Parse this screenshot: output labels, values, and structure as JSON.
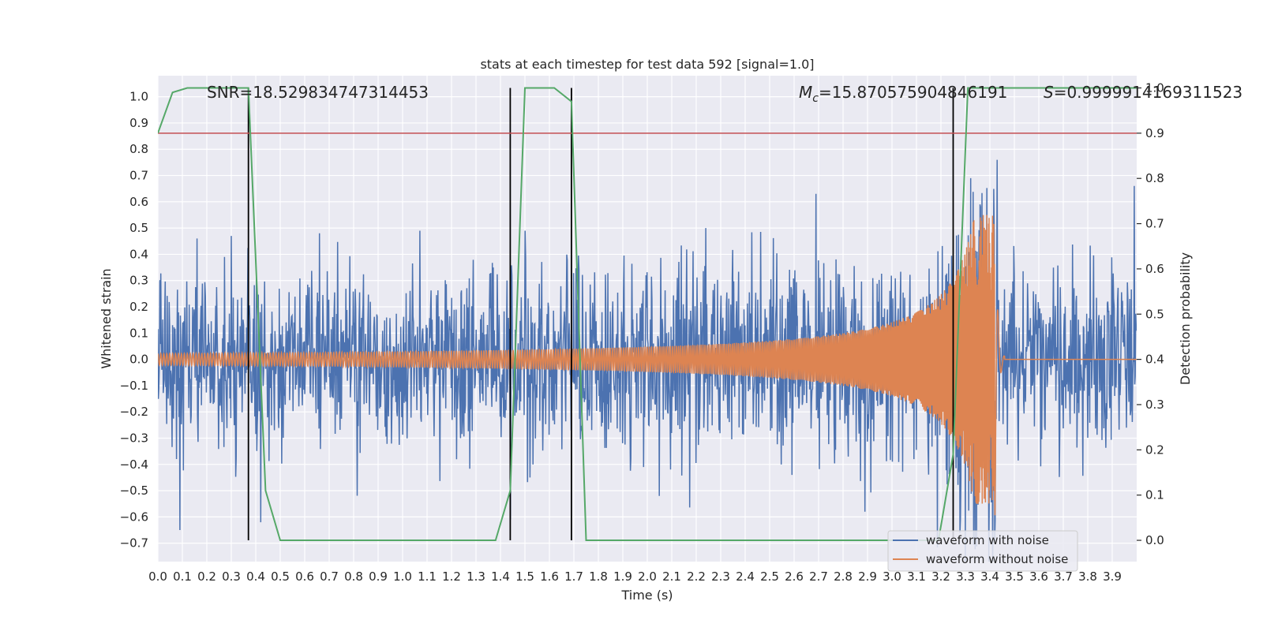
{
  "chart_data": {
    "type": "line",
    "title": "stats at each timestep for test data 592 [signal=1.0]",
    "xlabel": "Time (s)",
    "ylabel_left": "Whitened strain",
    "ylabel_right": "Detection probability",
    "xlim": [
      0.0,
      4.0
    ],
    "ylim_left": [
      -0.77,
      1.08
    ],
    "ylim_right": [
      -0.047,
      1.027
    ],
    "x_ticks": [
      "0.0",
      "0.1",
      "0.2",
      "0.3",
      "0.4",
      "0.5",
      "0.6",
      "0.7",
      "0.8",
      "0.9",
      "1.0",
      "1.1",
      "1.2",
      "1.3",
      "1.4",
      "1.5",
      "1.6",
      "1.7",
      "1.8",
      "1.9",
      "2.0",
      "2.1",
      "2.2",
      "2.3",
      "2.4",
      "2.5",
      "2.6",
      "2.7",
      "2.8",
      "2.9",
      "3.0",
      "3.1",
      "3.2",
      "3.3",
      "3.4",
      "3.5",
      "3.6",
      "3.7",
      "3.8",
      "3.9"
    ],
    "y_ticks_left": [
      "1.0",
      "0.9",
      "0.8",
      "0.7",
      "0.6",
      "0.5",
      "0.4",
      "0.3",
      "0.2",
      "0.1",
      "0.0",
      "−0.1",
      "−0.2",
      "−0.3",
      "−0.4",
      "−0.5",
      "−0.6",
      "−0.7"
    ],
    "y_ticks_right": [
      "1.0",
      "0.9",
      "0.8",
      "0.7",
      "0.6",
      "0.5",
      "0.4",
      "0.3",
      "0.2",
      "0.1",
      "0.0"
    ],
    "annotations": {
      "snr": "SNR=18.529834747314453",
      "mc_symbol": "M",
      "mc_sub": "c",
      "mc_value": "=15.870575904846191",
      "s_symbol": "S",
      "s_value": "=0.9999914169311523"
    },
    "legend": {
      "placement": "lower right",
      "entries": [
        "waveform with noise",
        "waveform without noise"
      ]
    },
    "threshold": {
      "value": 0.9,
      "axis": "right",
      "color": "#c44e52"
    },
    "vertical_markers_s": [
      0.37,
      1.44,
      1.69,
      3.25
    ],
    "series": [
      {
        "name": "waveform with noise",
        "axis": "left",
        "color": "#4c72b0",
        "kind": "noisy_strain",
        "noise_sigma": 0.17,
        "sample_count": 2000,
        "spikes": [
          {
            "x": 0.09,
            "y": -0.65
          },
          {
            "x": 0.16,
            "y": 0.46
          },
          {
            "x": 0.3,
            "y": 0.47
          },
          {
            "x": 0.42,
            "y": -0.62
          },
          {
            "x": 0.66,
            "y": 0.48
          },
          {
            "x": 1.07,
            "y": 0.49
          },
          {
            "x": 1.44,
            "y": -0.61
          },
          {
            "x": 1.5,
            "y": 0.49
          },
          {
            "x": 2.05,
            "y": -0.52
          },
          {
            "x": 2.24,
            "y": 0.5
          },
          {
            "x": 2.69,
            "y": 0.63
          },
          {
            "x": 2.89,
            "y": -0.58
          },
          {
            "x": 3.28,
            "y": -0.61
          },
          {
            "x": 3.36,
            "y": 0.59
          },
          {
            "x": 3.43,
            "y": 0.76
          },
          {
            "x": 3.99,
            "y": 0.66
          }
        ]
      },
      {
        "name": "waveform without noise",
        "axis": "left",
        "color": "#dd8452",
        "kind": "chirp",
        "merger_time_s": 3.42,
        "amplitude_start": 0.022,
        "peak": 0.55,
        "trough": -0.66
      },
      {
        "name": "detection probability",
        "axis": "right",
        "color": "#55a868",
        "x": [
          0.0,
          0.06,
          0.12,
          0.18,
          0.25,
          0.31,
          0.37,
          0.44,
          0.5,
          0.56,
          0.62,
          0.69,
          0.75,
          0.81,
          0.88,
          0.94,
          1.0,
          1.06,
          1.12,
          1.19,
          1.25,
          1.31,
          1.38,
          1.44,
          1.5,
          1.56,
          1.62,
          1.69,
          1.75,
          1.81,
          1.88,
          1.94,
          2.0,
          2.06,
          2.12,
          2.19,
          2.25,
          2.31,
          2.38,
          2.44,
          2.5,
          2.56,
          2.62,
          2.69,
          2.75,
          2.81,
          2.88,
          2.94,
          3.0,
          3.06,
          3.12,
          3.19,
          3.25,
          3.31,
          3.38,
          3.44,
          3.5,
          3.56,
          3.62,
          3.69,
          3.75,
          3.81,
          3.88,
          3.94,
          4.0
        ],
        "values": [
          0.9,
          0.99,
          1.0,
          1.0,
          1.0,
          1.0,
          1.0,
          0.11,
          0.0,
          0.0,
          0.0,
          0.0,
          0.0,
          0.0,
          0.0,
          0.0,
          0.0,
          0.0,
          0.0,
          0.0,
          0.0,
          0.0,
          0.0,
          0.11,
          1.0,
          1.0,
          1.0,
          0.97,
          0.0,
          0.0,
          0.0,
          0.0,
          0.0,
          0.0,
          0.0,
          0.0,
          0.0,
          0.0,
          0.0,
          0.0,
          0.0,
          0.0,
          0.0,
          0.0,
          0.0,
          0.0,
          0.0,
          0.0,
          0.0,
          0.0,
          0.0,
          0.0,
          0.19,
          1.0,
          1.0,
          1.0,
          1.0,
          1.0,
          1.0,
          1.0,
          1.0,
          1.0,
          1.0,
          1.0,
          1.0
        ]
      }
    ]
  }
}
